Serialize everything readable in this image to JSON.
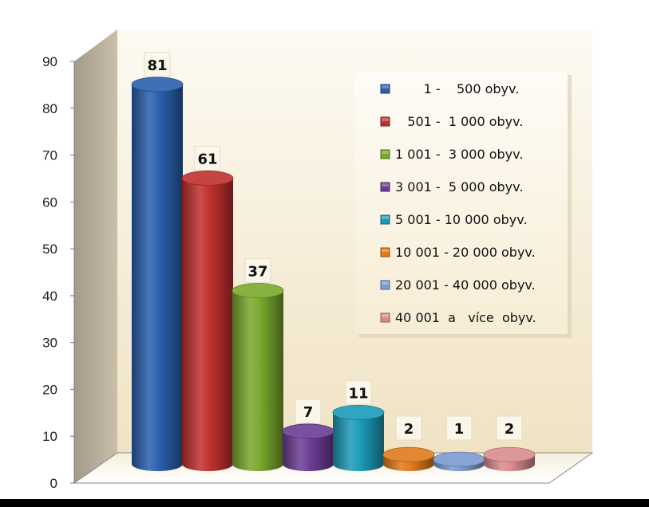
{
  "chart_data": {
    "type": "bar",
    "categories": [
      "       1 -    500 obyv.",
      "   501 -  1 000 obyv.",
      "1 001 -  3 000 obyv.",
      "3 001 -  5 000 obyv.",
      "5 001 - 10 000 obyv.",
      "10 001 - 20 000 obyv.",
      "20 001 - 40 000 obyv.",
      "40 001  a   více  obyv."
    ],
    "values": [
      81,
      61,
      37,
      7,
      11,
      2,
      1,
      2
    ],
    "colors": [
      "#2a5fae",
      "#c0302e",
      "#7aa82c",
      "#6a3d94",
      "#1b9ab8",
      "#e07a1c",
      "#7a9ad0",
      "#d98a8e"
    ],
    "ylim": [
      0,
      90
    ],
    "yticks": [
      0,
      10,
      20,
      30,
      40,
      50,
      60,
      70,
      80,
      90
    ],
    "style": "3d-cylinder",
    "legend_position": "top-right",
    "title": "",
    "xlabel": "",
    "ylabel": ""
  }
}
